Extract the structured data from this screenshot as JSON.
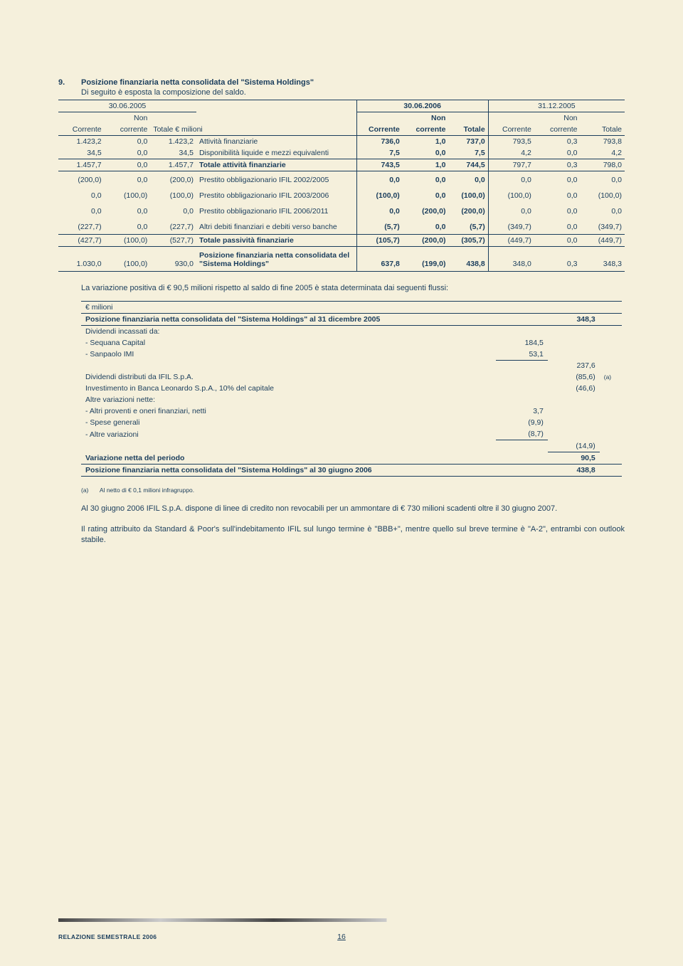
{
  "section": {
    "num": "9.",
    "heading": "Posizione finanziaria netta consolidata del \"Sistema Holdings\"",
    "sub": "Di seguito è esposta la composizione del saldo."
  },
  "t1": {
    "h1": {
      "c1": "30.06.2005",
      "c2": "30.06.2006",
      "c3": "31.12.2005"
    },
    "h2": {
      "non1": "Non",
      "non2": "Non",
      "non3": "Non"
    },
    "h3": {
      "corrente1": "Corrente",
      "corrente2": "corrente",
      "totale_label": "Totale € milioni",
      "corrente3": "Corrente",
      "corrente4": "corrente",
      "totale2": "Totale",
      "corrente5": "Corrente",
      "corrente6": "corrente",
      "totale3": "Totale"
    },
    "rows": [
      {
        "a": "1.423,2",
        "b": "0,0",
        "c": "1.423,2",
        "desc": "Attività finanziarie",
        "d": "736,0",
        "e": "1,0",
        "f": "737,0",
        "g": "793,5",
        "h": "0,3",
        "i": "793,8"
      },
      {
        "a": "34,5",
        "b": "0,0",
        "c": "34,5",
        "desc": "Disponibilità liquide e mezzi equivalenti",
        "d": "7,5",
        "e": "0,0",
        "f": "7,5",
        "g": "4,2",
        "h": "0,0",
        "i": "4,2"
      },
      {
        "a": "1.457,7",
        "b": "0,0",
        "c": "1.457,7",
        "desc": "Totale attività finanziarie",
        "d": "743,5",
        "e": "1,0",
        "f": "744,5",
        "g": "797,7",
        "h": "0,3",
        "i": "798,0"
      },
      {
        "a": "(200,0)",
        "b": "0,0",
        "c": "(200,0)",
        "desc": "Prestito obbligazionario IFIL 2002/2005",
        "d": "0,0",
        "e": "0,0",
        "f": "0,0",
        "g": "0,0",
        "h": "0,0",
        "i": "0,0"
      },
      {
        "a": "0,0",
        "b": "(100,0)",
        "c": "(100,0)",
        "desc": "Prestito obbligazionario IFIL 2003/2006",
        "d": "(100,0)",
        "e": "0,0",
        "f": "(100,0)",
        "g": "(100,0)",
        "h": "0,0",
        "i": "(100,0)"
      },
      {
        "a": "0,0",
        "b": "0,0",
        "c": "0,0",
        "desc": "Prestito obbligazionario IFIL 2006/2011",
        "d": "0,0",
        "e": "(200,0)",
        "f": "(200,0)",
        "g": "0,0",
        "h": "0,0",
        "i": "0,0"
      },
      {
        "a": "(227,7)",
        "b": "0,0",
        "c": "(227,7)",
        "desc": "Altri debiti finanziari e debiti verso banche",
        "d": "(5,7)",
        "e": "0,0",
        "f": "(5,7)",
        "g": "(349,7)",
        "h": "0,0",
        "i": "(349,7)"
      },
      {
        "a": "(427,7)",
        "b": "(100,0)",
        "c": "(527,7)",
        "desc": "Totale passività finanziarie",
        "d": "(105,7)",
        "e": "(200,0)",
        "f": "(305,7)",
        "g": "(449,7)",
        "h": "0,0",
        "i": "(449,7)"
      },
      {
        "a": "1.030,0",
        "b": "(100,0)",
        "c": "930,0",
        "desc": "Posizione finanziaria netta consolidata del \"Sistema Holdings\"",
        "d": "637,8",
        "e": "(199,0)",
        "f": "438,8",
        "g": "348,0",
        "h": "0,3",
        "i": "348,3"
      }
    ]
  },
  "para1": "La variazione positiva di € 90,5 milioni rispetto al saldo di fine 2005 è stata determinata dai seguenti flussi:",
  "t2": {
    "header_unit": "€ milioni",
    "row_opening": {
      "label": "Posizione finanziaria netta consolidata del \"Sistema Holdings\" al 31 dicembre 2005",
      "val": "348,3"
    },
    "div_label": "Dividendi incassati da:",
    "div1": {
      "label": "- Sequana Capital",
      "val": "184,5"
    },
    "div2": {
      "label": "- Sanpaolo IMI",
      "val": "53,1"
    },
    "div_total": "237,6",
    "ifil": {
      "label": "Dividendi distributi da IFIL S.p.A.",
      "val": "(85,6)",
      "note": "(a)"
    },
    "banca": {
      "label": "Investimento in Banca Leonardo S.p.A., 10% del capitale",
      "val": "(46,6)"
    },
    "altre_label": "Altre variazioni nette:",
    "av1": {
      "label": "- Altri proventi e oneri finanziari, netti",
      "val": "3,7"
    },
    "av2": {
      "label": "- Spese generali",
      "val": "(9,9)"
    },
    "av3": {
      "label": "- Altre variazioni",
      "val": "(8,7)"
    },
    "av_total": "(14,9)",
    "var_netta": {
      "label": "Variazione netta del periodo",
      "val": "90,5"
    },
    "closing": {
      "label": "Posizione finanziaria netta consolidata del \"Sistema Holdings\" al 30 giugno 2006",
      "val": "438,8"
    }
  },
  "footnote": {
    "marker": "(a)",
    "text": "Al netto di € 0,1 milioni infragruppo."
  },
  "body1": "Al 30 giugno 2006 IFIL S.p.A. dispone di linee di credito non revocabili per un ammontare di € 730 milioni scadenti oltre il 30 giugno 2007.",
  "body2": "Il rating attribuito da Standard & Poor's sull'indebitamento IFIL sul lungo termine è \"BBB+\", mentre quello sul breve termine è \"A-2\", entrambi con outlook stabile.",
  "footer": {
    "label": "RELAZIONE SEMESTRALE 2006",
    "page": "16"
  }
}
